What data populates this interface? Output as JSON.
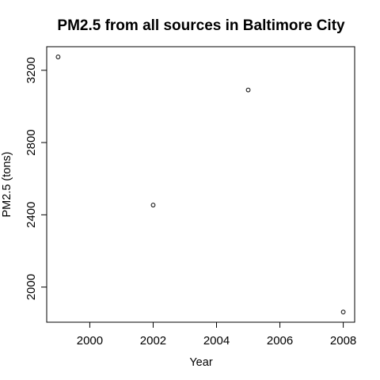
{
  "chart_data": {
    "type": "scatter",
    "title": "PM2.5 from all sources in Baltimore City",
    "xlabel": "Year",
    "ylabel": "PM2.5 (tons)",
    "x": [
      1999,
      2002,
      2005,
      2008
    ],
    "y": [
      3274,
      2454,
      3091,
      1862
    ],
    "xlim": [
      1999,
      2008
    ],
    "ylim": [
      1862,
      3274
    ],
    "xticks": [
      2000,
      2002,
      2004,
      2006,
      2008
    ],
    "yticks": [
      2000,
      2400,
      2800,
      3200
    ],
    "xtick_labels": [
      "2000",
      "2002",
      "2004",
      "2006",
      "2008"
    ],
    "ytick_labels": [
      "2000",
      "2400",
      "2800",
      "3200"
    ],
    "grid": false,
    "legend": "none",
    "marker": "open-circle",
    "color": "#000000"
  }
}
